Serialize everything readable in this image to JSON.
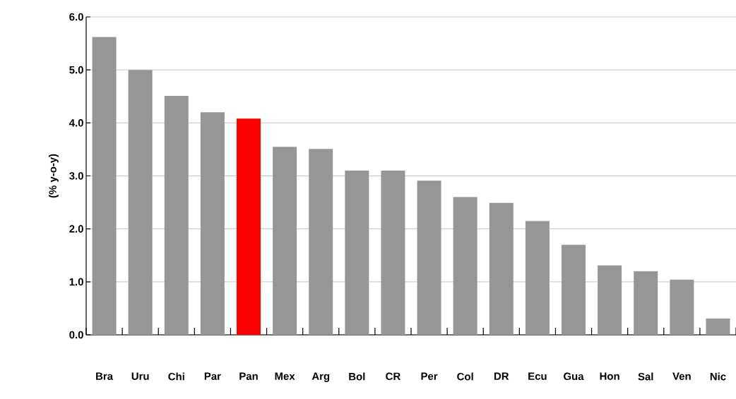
{
  "chart_data": {
    "type": "bar",
    "ylabel": "(% y-o-y)",
    "categories": [
      "Bra",
      "Uru",
      "Chi",
      "Par",
      "Pan",
      "Mex",
      "Arg",
      "Bol",
      "CR",
      "Per",
      "Col",
      "DR",
      "Ecu",
      "Gua",
      "Hon",
      "Sal",
      "Ven",
      "Nic"
    ],
    "values": [
      5.62,
      5.0,
      4.51,
      4.2,
      4.08,
      3.55,
      3.51,
      3.1,
      3.1,
      2.91,
      2.6,
      2.49,
      2.15,
      1.7,
      1.31,
      1.2,
      1.04,
      0.31
    ],
    "colors": [
      "#969696",
      "#969696",
      "#969696",
      "#969696",
      "#ff0000",
      "#969696",
      "#969696",
      "#969696",
      "#969696",
      "#969696",
      "#969696",
      "#969696",
      "#969696",
      "#969696",
      "#969696",
      "#969696",
      "#969696",
      "#969696"
    ],
    "ylim": [
      0,
      6
    ],
    "yticks": [
      {
        "value": 0,
        "label": "0.0"
      },
      {
        "value": 1,
        "label": "1.0"
      },
      {
        "value": 2,
        "label": "2.0"
      },
      {
        "value": 3,
        "label": "3.0"
      },
      {
        "value": 4,
        "label": "4.0"
      },
      {
        "value": 5,
        "label": "5.0"
      },
      {
        "value": 6,
        "label": "6.0"
      }
    ],
    "grid": "y"
  }
}
